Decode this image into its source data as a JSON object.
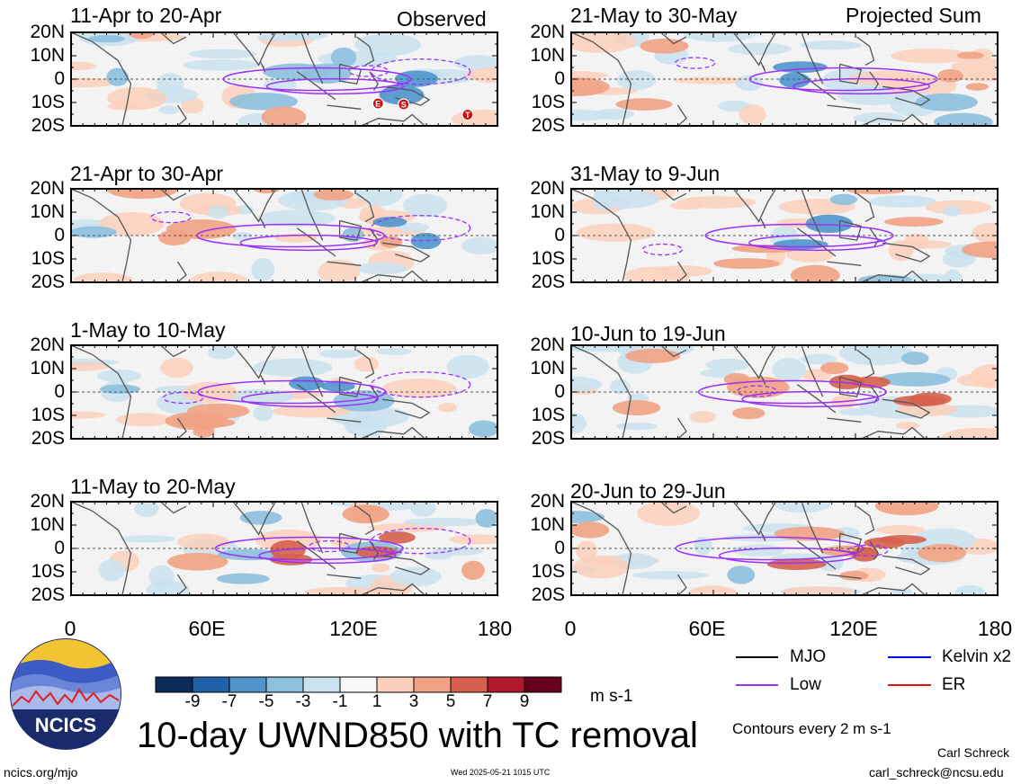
{
  "header": {
    "observed_label": "Observed",
    "projected_label": "Projected Sum"
  },
  "panels": [
    {
      "title": "11-Apr to 20-Apr"
    },
    {
      "title": "21-Apr to 30-Apr"
    },
    {
      "title": "1-May to 10-May"
    },
    {
      "title": "11-May to 20-May"
    },
    {
      "title": "21-May to 30-May"
    },
    {
      "title": "31-May to 9-Jun"
    },
    {
      "title": "10-Jun to 19-Jun"
    },
    {
      "title": "20-Jun to 29-Jun"
    }
  ],
  "lat_labels": [
    "20N",
    "10N",
    "0",
    "10S",
    "20S"
  ],
  "lon_labels": [
    "0",
    "60E",
    "120E",
    "180"
  ],
  "colorbar": {
    "labels": [
      "-9",
      "-7",
      "-5",
      "-3",
      "-1",
      "1",
      "3",
      "5",
      "7",
      "9"
    ],
    "colors": [
      "#0b2c58",
      "#1f62aa",
      "#4f95cc",
      "#8dc0de",
      "#c9e2ef",
      "#f7f7f7",
      "#fbd0bc",
      "#f2a283",
      "#d6604d",
      "#b2182b",
      "#67001f"
    ],
    "unit": "m s-1"
  },
  "legend": {
    "mjo": {
      "label": "MJO",
      "color": "#000000"
    },
    "kelvin": {
      "label": "Kelvin x2",
      "color": "#0000ff"
    },
    "low": {
      "label": "Low",
      "color": "#9b30ff"
    },
    "er": {
      "label": "ER",
      "color": "#dd1111"
    },
    "contours_note": "Contours every 2 m s-1"
  },
  "title": "10-day UWND850 with TC removal",
  "logo_text": "NCICS",
  "footer": {
    "url": "ncics.org/mjo",
    "timestamp": "Wed 2025-05-21 1015 UTC",
    "author": "Carl Schreck",
    "email": "carl_schreck@ncsu.edu"
  },
  "tc_markers": [
    "E",
    "S",
    "T"
  ]
}
